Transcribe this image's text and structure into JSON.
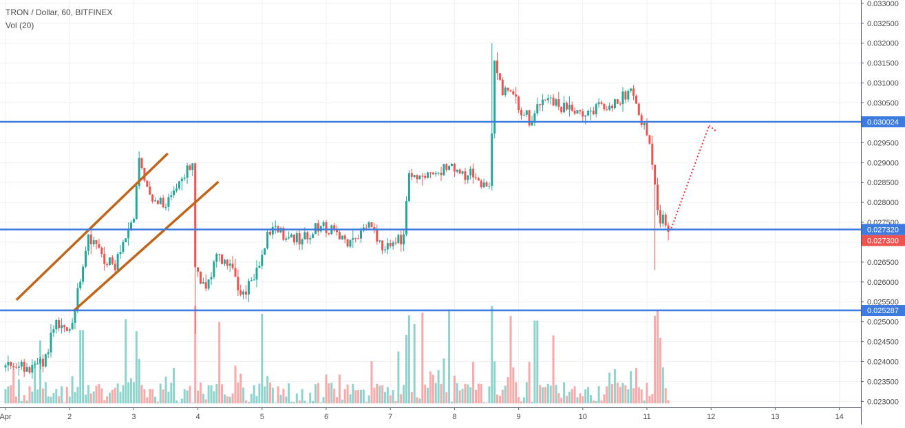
{
  "header": {
    "symbol_line": "TRON / Dollar, 60, BITFINEX",
    "indicator_line": "Vol (20)"
  },
  "colors": {
    "up": "#26a69a",
    "down": "#ef5350",
    "up_volume": "#8fd3cc",
    "down_volume": "#f6aaa9",
    "level_line": "#3d7be0",
    "channel": "#c0651a",
    "projection": "#e8333a",
    "grid": "#eef0f3",
    "axis_text": "#4a4a4a"
  },
  "chart_data": {
    "type": "candlestick",
    "y_ticks": [
      "0.033000",
      "0.032500",
      "0.032000",
      "0.031500",
      "0.031000",
      "0.030500",
      "0.030000",
      "0.029500",
      "0.029000",
      "0.028500",
      "0.028000",
      "0.027500",
      "0.027000",
      "0.026500",
      "0.026000",
      "0.025500",
      "0.025000",
      "0.024500",
      "0.024000",
      "0.023500",
      "0.023000"
    ],
    "y_tick_values": [
      0.033,
      0.0325,
      0.032,
      0.0315,
      0.031,
      0.0305,
      0.03,
      0.0295,
      0.029,
      0.0285,
      0.028,
      0.0275,
      0.027,
      0.0265,
      0.026,
      0.0255,
      0.025,
      0.0245,
      0.024,
      0.0235,
      0.023
    ],
    "ylim": [
      0.02285,
      0.03305
    ],
    "x_ticks": [
      "Apr",
      "2",
      "3",
      "4",
      "5",
      "6",
      "7",
      "8",
      "9",
      "10",
      "11",
      "12",
      "13",
      "14"
    ],
    "x_tick_days": [
      1,
      2,
      3,
      4,
      5,
      6,
      7,
      8,
      9,
      10,
      11,
      12,
      13,
      14
    ],
    "xlim_days": [
      1,
      14.5
    ],
    "price_levels": [
      {
        "label": "0.030024",
        "value": 0.030024
      },
      {
        "label": "0.027320",
        "value": 0.02732
      },
      {
        "label": "0.025287",
        "value": 0.025287
      }
    ],
    "last_price": {
      "label": "0.027300",
      "value": 0.0273
    },
    "channel_lines": [
      {
        "from": {
          "day": 1.17,
          "price": 0.02555
        },
        "to": {
          "day": 3.53,
          "price": 0.02923
        }
      },
      {
        "from": {
          "day": 2.06,
          "price": 0.02527
        },
        "to": {
          "day": 4.32,
          "price": 0.02852
        }
      }
    ],
    "projection": {
      "from": {
        "day": 11.38,
        "price": 0.02735
      },
      "to": {
        "day": 11.97,
        "price": 0.02993
      }
    },
    "volume_panel": {
      "base_price": 0.02295,
      "max_price": 0.0254
    },
    "series_anchor_path": [
      [
        1.0,
        0.02385
      ],
      [
        1.4,
        0.0239
      ],
      [
        1.62,
        0.024
      ],
      [
        1.75,
        0.0249
      ],
      [
        1.9,
        0.0249
      ],
      [
        2.03,
        0.0247
      ],
      [
        2.12,
        0.0258
      ],
      [
        2.3,
        0.0271
      ],
      [
        2.5,
        0.0266
      ],
      [
        2.7,
        0.0264
      ],
      [
        2.9,
        0.0272
      ],
      [
        3.0,
        0.0276
      ],
      [
        3.07,
        0.029
      ],
      [
        3.2,
        0.0285
      ],
      [
        3.35,
        0.028
      ],
      [
        3.5,
        0.0279
      ],
      [
        3.7,
        0.0286
      ],
      [
        3.85,
        0.0288
      ],
      [
        3.92,
        0.0289
      ],
      [
        3.96,
        0.0263
      ],
      [
        4.1,
        0.0258
      ],
      [
        4.3,
        0.0266
      ],
      [
        4.5,
        0.0264
      ],
      [
        4.65,
        0.0256
      ],
      [
        4.8,
        0.0259
      ],
      [
        5.0,
        0.0266
      ],
      [
        5.1,
        0.0273
      ],
      [
        5.4,
        0.0272
      ],
      [
        5.6,
        0.0271
      ],
      [
        5.9,
        0.0274
      ],
      [
        6.2,
        0.0272
      ],
      [
        6.4,
        0.0269
      ],
      [
        6.7,
        0.0274
      ],
      [
        6.9,
        0.0269
      ],
      [
        7.1,
        0.027
      ],
      [
        7.22,
        0.0272
      ],
      [
        7.28,
        0.0289
      ],
      [
        7.45,
        0.0286
      ],
      [
        7.7,
        0.0287
      ],
      [
        7.9,
        0.029
      ],
      [
        8.1,
        0.0286
      ],
      [
        8.25,
        0.0288
      ],
      [
        8.5,
        0.0283
      ],
      [
        8.57,
        0.0283
      ],
      [
        8.6,
        0.0319
      ],
      [
        8.75,
        0.0308
      ],
      [
        8.95,
        0.0306
      ],
      [
        9.05,
        0.0303
      ],
      [
        9.2,
        0.03
      ],
      [
        9.35,
        0.0306
      ],
      [
        9.6,
        0.0305
      ],
      [
        9.8,
        0.0303
      ],
      [
        10.0,
        0.0302
      ],
      [
        10.3,
        0.0304
      ],
      [
        10.55,
        0.0306
      ],
      [
        10.75,
        0.0308
      ],
      [
        10.85,
        0.0303
      ],
      [
        10.95,
        0.0299
      ],
      [
        11.05,
        0.0295
      ],
      [
        11.12,
        0.0287
      ],
      [
        11.18,
        0.0276
      ],
      [
        11.3,
        0.0275
      ],
      [
        11.36,
        0.0273
      ]
    ]
  }
}
